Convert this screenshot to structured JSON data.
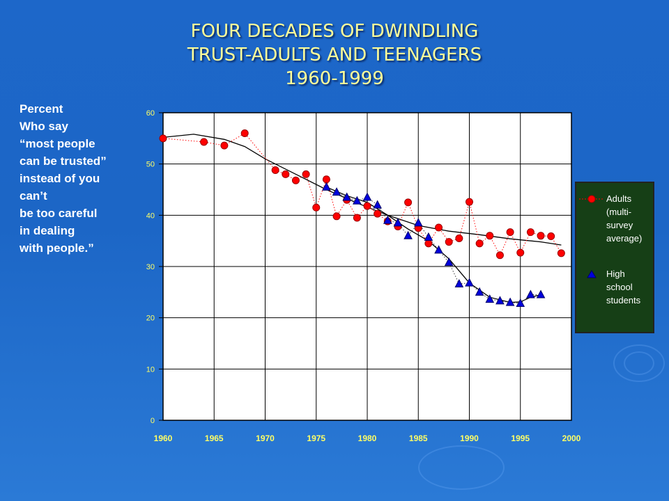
{
  "slide": {
    "title_lines": [
      "FOUR DECADES OF DWINDLING",
      "TRUST-ADULTS AND TEENAGERS",
      "1960-1999"
    ],
    "caption_lines": [
      "Percent",
      "Who say",
      "“most people",
      "can be trusted”",
      "instead of you",
      "can’t",
      "be too careful",
      "in dealing",
      "with people.”"
    ]
  },
  "colors": {
    "title": "#ffff99",
    "background": "#1d67c9",
    "plot_bg": "#ffffff",
    "legend_bg": "#163f16",
    "adults": "#ff0000",
    "students": "#0000cc"
  },
  "chart_data": {
    "type": "scatter",
    "xlim": [
      1960,
      2000
    ],
    "ylim": [
      0,
      60
    ],
    "x_ticks": [
      "1960",
      "1965",
      "1970",
      "1975",
      "1980",
      "1985",
      "1990",
      "1995",
      "2000"
    ],
    "y_ticks": [
      "0",
      "10",
      "20",
      "30",
      "40",
      "50",
      "60"
    ],
    "grid": true,
    "legend_position": "right",
    "series": [
      {
        "name": "Adults (multi-survey average)",
        "marker": "circle",
        "points": [
          [
            1960,
            55
          ],
          [
            1964,
            54.3
          ],
          [
            1966,
            53.6
          ],
          [
            1968,
            56
          ],
          [
            1971,
            48.8
          ],
          [
            1972,
            48
          ],
          [
            1973,
            46.8
          ],
          [
            1974,
            48
          ],
          [
            1975,
            41.5
          ],
          [
            1976,
            47
          ],
          [
            1977,
            39.8
          ],
          [
            1978,
            43
          ],
          [
            1979,
            39.5
          ],
          [
            1980,
            41.8
          ],
          [
            1981,
            40.3
          ],
          [
            1982,
            38.8
          ],
          [
            1983,
            37.8
          ],
          [
            1984,
            42.5
          ],
          [
            1985,
            37.5
          ],
          [
            1986,
            34.5
          ],
          [
            1987,
            37.6
          ],
          [
            1988,
            34.8
          ],
          [
            1989,
            35.5
          ],
          [
            1990,
            42.6
          ],
          [
            1991,
            34.5
          ],
          [
            1992,
            36
          ],
          [
            1993,
            32.2
          ],
          [
            1994,
            36.7
          ],
          [
            1995,
            32.7
          ],
          [
            1996,
            36.7
          ],
          [
            1997,
            36
          ],
          [
            1998,
            35.9
          ],
          [
            1999,
            32.6
          ]
        ],
        "trend": [
          [
            1960,
            55.2
          ],
          [
            1963,
            55.8
          ],
          [
            1966,
            54.8
          ],
          [
            1968,
            53.4
          ],
          [
            1970,
            51
          ],
          [
            1973,
            48
          ],
          [
            1976,
            45
          ],
          [
            1979,
            42.4
          ],
          [
            1982,
            40
          ],
          [
            1985,
            38
          ],
          [
            1988,
            36.9
          ],
          [
            1991,
            36.2
          ],
          [
            1994,
            35.4
          ],
          [
            1997,
            34.8
          ],
          [
            1999,
            34.2
          ]
        ]
      },
      {
        "name": "High school students",
        "marker": "triangle",
        "points": [
          [
            1976,
            45.5
          ],
          [
            1977,
            44.5
          ],
          [
            1978,
            43.5
          ],
          [
            1979,
            42.8
          ],
          [
            1980,
            43.5
          ],
          [
            1981,
            42
          ],
          [
            1982,
            39
          ],
          [
            1983,
            38.5
          ],
          [
            1984,
            36
          ],
          [
            1985,
            38.5
          ],
          [
            1986,
            35.7
          ],
          [
            1987,
            33.2
          ],
          [
            1988,
            30.8
          ],
          [
            1989,
            26.6
          ],
          [
            1990,
            26.8
          ],
          [
            1991,
            25
          ],
          [
            1992,
            23.6
          ],
          [
            1993,
            23.3
          ],
          [
            1994,
            23
          ],
          [
            1995,
            22.8
          ],
          [
            1996,
            24.5
          ],
          [
            1997,
            24.5
          ]
        ],
        "trend": [
          [
            1976,
            45.5
          ],
          [
            1978,
            43.8
          ],
          [
            1980,
            42.5
          ],
          [
            1982,
            40
          ],
          [
            1984,
            37.3
          ],
          [
            1986,
            35
          ],
          [
            1988,
            31.5
          ],
          [
            1990,
            26.8
          ],
          [
            1992,
            24
          ],
          [
            1994,
            23
          ],
          [
            1995,
            23.1
          ],
          [
            1996,
            24
          ],
          [
            1997,
            24.5
          ]
        ]
      }
    ]
  }
}
